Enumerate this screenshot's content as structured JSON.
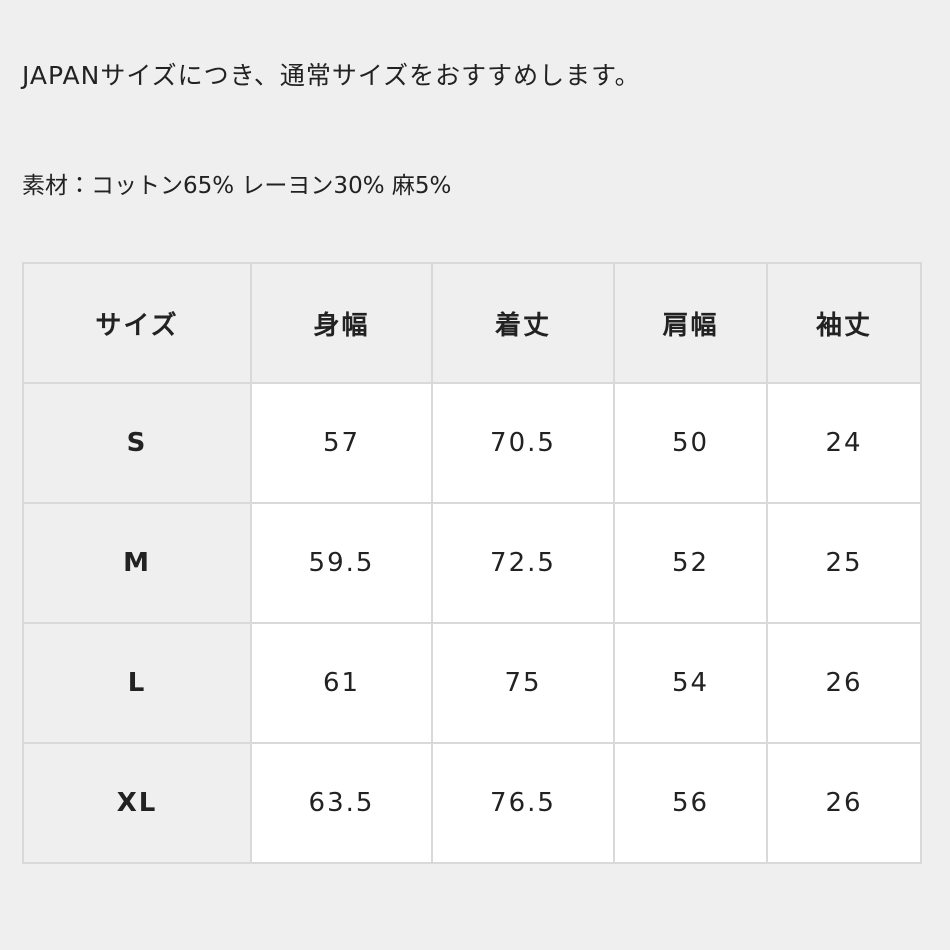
{
  "notes": [
    "JAPANサイズにつき、通常サイズをおすすめします。",
    "素材：コットン65% レーヨン30% 麻5%"
  ],
  "table": {
    "header": [
      "サイズ",
      "身幅",
      "着丈",
      "肩幅",
      "袖丈"
    ],
    "rows": [
      [
        "S",
        "57",
        "70.5",
        "50",
        "24"
      ],
      [
        "M",
        "59.5",
        "72.5",
        "52",
        "25"
      ],
      [
        "L",
        "61",
        "75",
        "54",
        "26"
      ],
      [
        "XL",
        "63.5",
        "76.5",
        "56",
        "26"
      ]
    ]
  }
}
